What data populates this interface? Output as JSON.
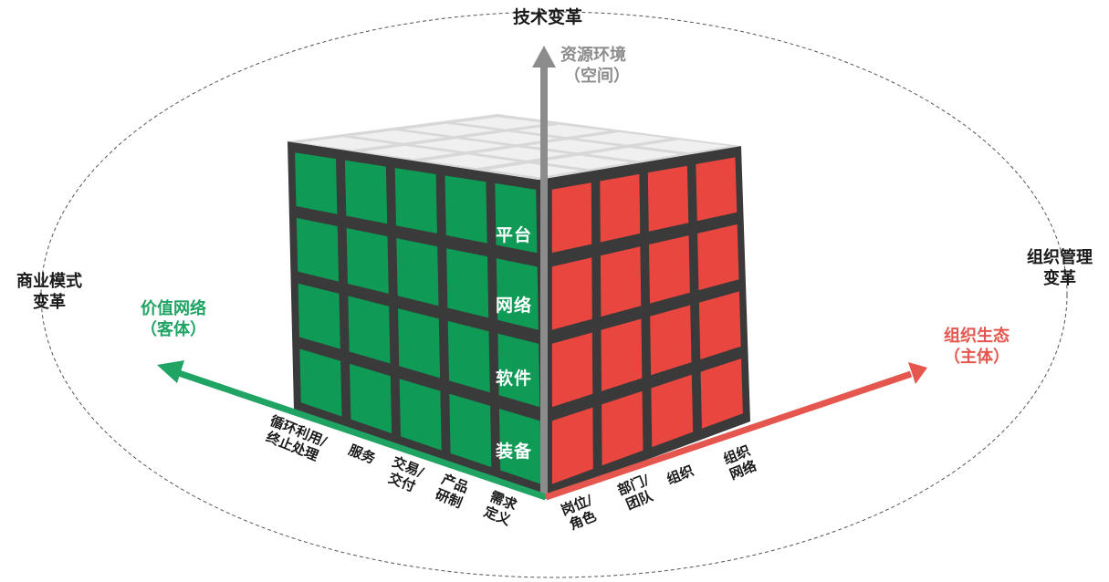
{
  "labels": {
    "top": "技术变革",
    "left": [
      "商业模式",
      "变革"
    ],
    "right": [
      "组织管理",
      "变革"
    ],
    "axis_up": [
      "资源环境",
      "（空间）"
    ],
    "axis_left": [
      "价值网络",
      "（客体）"
    ],
    "axis_right": [
      "组织生态",
      "（主体）"
    ]
  },
  "cube_layers": [
    "平台",
    "网络",
    "软件",
    "装备"
  ],
  "left_ticks": [
    [
      "循环利用/",
      "终止处理"
    ],
    [
      "服务"
    ],
    [
      "交易/",
      "交付"
    ],
    [
      "产品",
      "研制"
    ],
    [
      "需求",
      "定义"
    ]
  ],
  "right_ticks": [
    [
      "岗位/",
      "角色"
    ],
    [
      "部门/",
      "团队"
    ],
    [
      "组织"
    ],
    [
      "组织",
      "网络"
    ]
  ],
  "colors": {
    "green_face": "#0f9a55",
    "red_face": "#e8463f",
    "top_face": "#f0f0f0",
    "cube_body": "#3a3a3a",
    "green_axis": "#1fa463",
    "red_axis": "#e5564f",
    "gray_axis": "#8c8c8c"
  }
}
